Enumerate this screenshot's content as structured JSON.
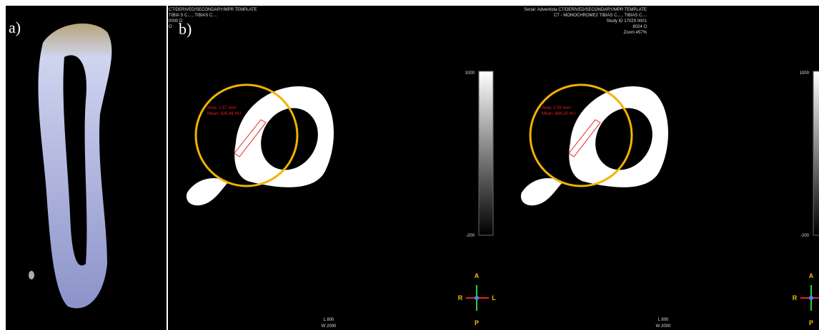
{
  "panel_labels": [
    "a)",
    "b)"
  ],
  "header_left": [
    "CT/DERIVED/SECONDARY/MPR TEMPLATE",
    "TIBIA S C...., TIBIAS C....",
    "0000 D",
    "O"
  ],
  "header_right": [
    "Serial: Adventista CT/DERIVED/SECONDARY/MPR TEMPLATE",
    "CT - MONOCHROME2 TIBIAS C...., TIBIAS C....",
    "Study ID 17029 0001",
    "8024 O",
    "Zoom 457%"
  ],
  "views": [
    {
      "roi": [
        "Area: 1.57 mm²",
        "Mean: 826,46 HU"
      ]
    },
    {
      "roi": [
        "Area: 2.09 mm²",
        "Mean: 684,10 HU"
      ]
    }
  ],
  "colorbar": [
    "1000",
    "-200"
  ],
  "orientation": {
    "top": "A",
    "left": "R",
    "right": "L",
    "bottom": "P"
  },
  "window": [
    "L 800",
    "W 2000"
  ]
}
